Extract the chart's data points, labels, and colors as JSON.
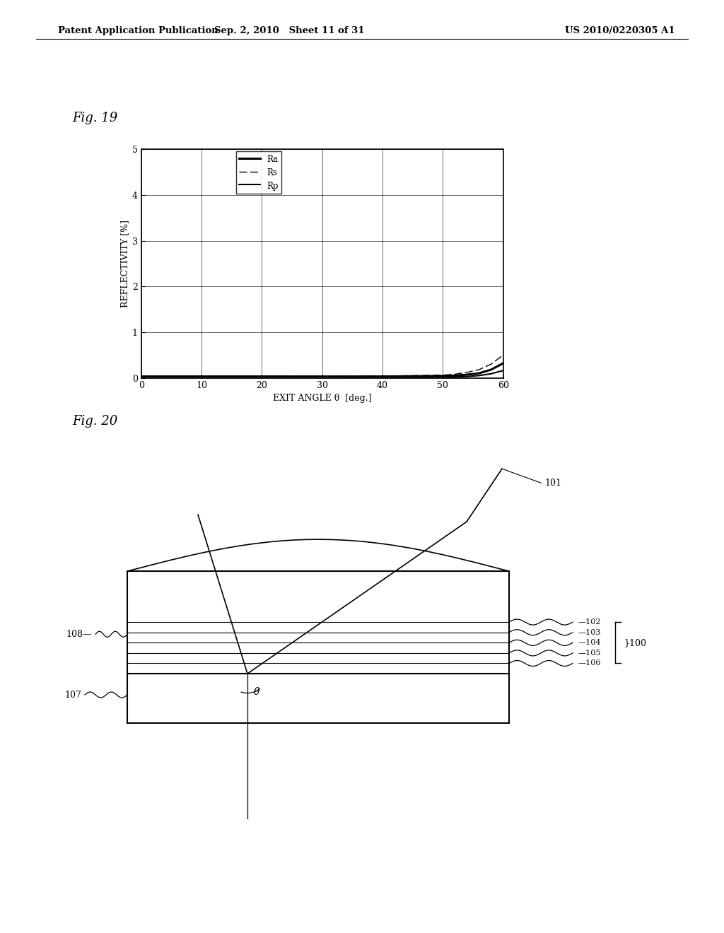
{
  "header_left": "Patent Application Publication",
  "header_mid": "Sep. 2, 2010   Sheet 11 of 31",
  "header_right": "US 2010/0220305 A1",
  "fig19_label": "Fig. 19",
  "fig20_label": "Fig. 20",
  "graph": {
    "xlabel": "EXIT ANGLE θ  [deg.]",
    "ylabel": "REFLECTIVITY [%]",
    "xlim": [
      0,
      60
    ],
    "ylim": [
      0,
      5
    ],
    "xticks": [
      0,
      10,
      20,
      30,
      40,
      50,
      60
    ],
    "yticks": [
      0,
      1,
      2,
      3,
      4,
      5
    ],
    "legend": [
      "Ra",
      "Rs",
      "Rp"
    ],
    "Ra_x": [
      0,
      10,
      20,
      30,
      40,
      50,
      52,
      54,
      56,
      58,
      60
    ],
    "Ra_y": [
      0.03,
      0.03,
      0.03,
      0.03,
      0.03,
      0.04,
      0.05,
      0.07,
      0.1,
      0.18,
      0.32
    ],
    "Rs_x": [
      0,
      10,
      20,
      30,
      40,
      50,
      52,
      54,
      56,
      58,
      60
    ],
    "Rs_y": [
      0.03,
      0.03,
      0.03,
      0.03,
      0.04,
      0.06,
      0.08,
      0.12,
      0.18,
      0.3,
      0.5
    ],
    "Rp_x": [
      0,
      10,
      20,
      30,
      40,
      50,
      52,
      54,
      56,
      58,
      60
    ],
    "Rp_y": [
      0.03,
      0.03,
      0.03,
      0.025,
      0.02,
      0.02,
      0.02,
      0.03,
      0.05,
      0.09,
      0.16
    ]
  }
}
